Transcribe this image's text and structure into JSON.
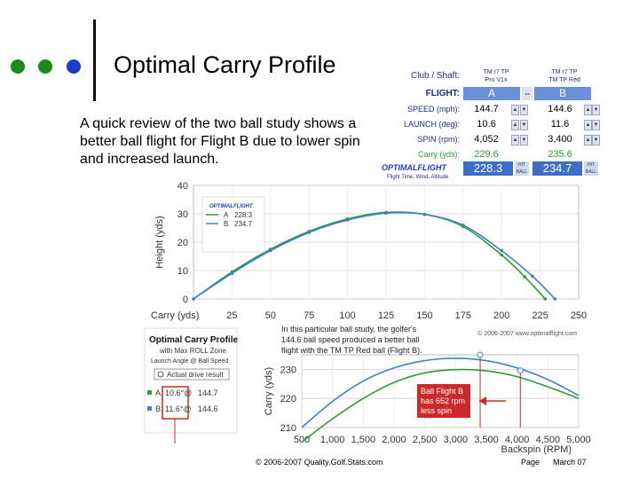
{
  "slide": {
    "title": "Optimal Carry Profile",
    "summary": "A quick review of the two ball study shows a better ball flight for Flight B due to lower spin and increased launch.",
    "copyright": "© 2006-2007 Quality.Golf.Stats.com",
    "page_label": "Page",
    "date_label": "March 07",
    "bullet_colors": [
      "#1a8a1a",
      "#1a8a1a",
      "#1a3cc8"
    ]
  },
  "optimal_panel": {
    "club_shaft_label": "Club / Shaft:",
    "ball_a_name": "TM r7 TP\nPro V1x",
    "ball_b_name": "TM r7 TP\nTM TP Red",
    "flight_label": "FLIGHT:",
    "flight_a": "A",
    "flight_b": "B",
    "speed_label": "SPEED (mph):",
    "speed_a": "144.7",
    "speed_b": "144.6",
    "launch_label": "LAUNCH (deg):",
    "launch_a": "10.6",
    "launch_b": "11.6",
    "spin_label": "SPIN (rpm):",
    "spin_a": "4,052",
    "spin_b": "3,400",
    "carry_label": "Carry (yds):",
    "carry_a": "229.6",
    "carry_b": "235.6",
    "logo_text": "OPTIMALFLIGHT",
    "total_a": "228.3",
    "total_b": "234.7",
    "hit_ball": "HIT BALL",
    "footer_text": "Flight Time, Wind, Altitude"
  },
  "chart_data": [
    {
      "type": "line",
      "xlabel": "Carry (yds)",
      "ylabel": "Height (yds)",
      "xlim": [
        0,
        250
      ],
      "ylim": [
        0,
        40
      ],
      "x_ticks": [
        "25",
        "50",
        "75",
        "100",
        "125",
        "150",
        "175",
        "200",
        "225",
        "250"
      ],
      "y_ticks": [
        "0",
        "10",
        "20",
        "30",
        "40"
      ],
      "copyright": "© 2006-2007 www.optimalflight.com",
      "legend": [
        {
          "name": "A",
          "value": "228.3",
          "color": "#2f9c3a"
        },
        {
          "name": "B",
          "value": "234.7",
          "color": "#3f7fd0"
        }
      ],
      "series": [
        {
          "name": "A",
          "color": "#2f9c3a",
          "x": [
            0,
            25,
            50,
            75,
            100,
            125,
            150,
            175,
            200,
            215,
            228.3
          ],
          "y": [
            0,
            9.5,
            17.5,
            23.8,
            28.2,
            30.5,
            29.8,
            25.5,
            15.5,
            7.8,
            0
          ]
        },
        {
          "name": "B",
          "color": "#3f7fd0",
          "x": [
            0,
            25,
            50,
            75,
            100,
            125,
            150,
            175,
            200,
            220,
            234.7
          ],
          "y": [
            0,
            9.0,
            17.0,
            23.4,
            27.8,
            30.2,
            29.8,
            26.0,
            17.0,
            8.0,
            0
          ]
        }
      ]
    },
    {
      "type": "line",
      "title": "Optimal Carry Profile",
      "subtitle": "with Max ROLL Zone",
      "sub2": "Launch Angle @ Ball Speed",
      "actual_label": "Actual drive result",
      "xlabel": "Backspin (RPM)",
      "ylabel": "Carry (yds)",
      "xlim": [
        500,
        5000
      ],
      "ylim": [
        210,
        235
      ],
      "x_ticks": [
        "500",
        "1,000",
        "1,500",
        "2,000",
        "2,500",
        "3,000",
        "3,500",
        "4,000",
        "4,500",
        "5,000"
      ],
      "y_ticks": [
        "210",
        "220",
        "230"
      ],
      "note": "In this particular ball study, the golfer's 144.6 ball speed produced a better ball flight with the TM TP Red ball (Flight B).",
      "callout": "Ball Flight B has 652 rpm less spin",
      "legend": [
        {
          "name": "A",
          "launch": "10.6",
          "speed": "144.7",
          "color": "#2f9c3a"
        },
        {
          "name": "B",
          "launch": "11.6",
          "speed": "144.6",
          "color": "#3f7fd0"
        }
      ],
      "series": [
        {
          "name": "A",
          "color": "#2f9c3a",
          "x": [
            500,
            1000,
            1500,
            2000,
            2500,
            3000,
            3500,
            4000,
            4500,
            5000
          ],
          "y": [
            205,
            213,
            220,
            225.5,
            228.8,
            229.9,
            229.5,
            227.5,
            224,
            220
          ]
        },
        {
          "name": "B",
          "color": "#3f7fd0",
          "x": [
            500,
            1000,
            1500,
            2000,
            2500,
            3000,
            3500,
            4000,
            4500,
            5000
          ],
          "y": [
            210,
            219,
            226,
            230.5,
            233,
            233.8,
            233,
            230.5,
            226.5,
            221
          ]
        }
      ],
      "markers": [
        {
          "name": "A",
          "x": 4052,
          "y": 229.6
        },
        {
          "name": "B",
          "x": 3400,
          "y": 235.6
        }
      ]
    }
  ]
}
